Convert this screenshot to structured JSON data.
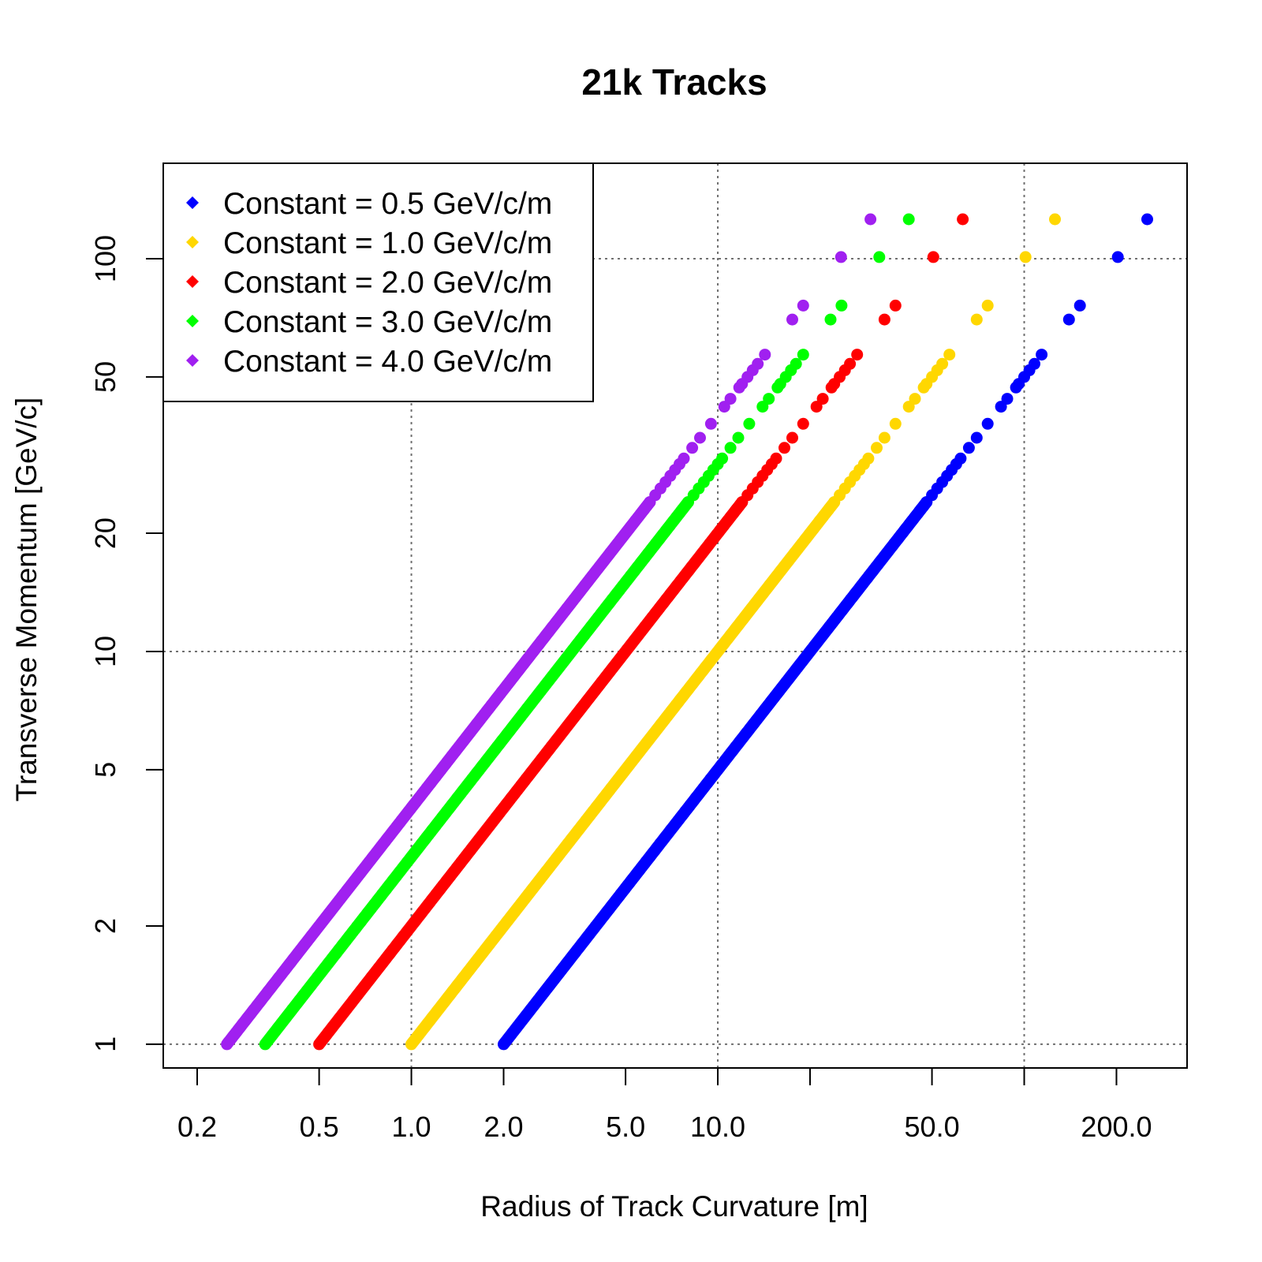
{
  "chart_data": {
    "type": "scatter",
    "title": "21k Tracks",
    "xlabel": "Radius of Track Curvature [m]",
    "ylabel": "Transverse Momentum [GeV/c]",
    "x_scale": "log",
    "y_scale": "log",
    "xlim": [
      0.155,
      340
    ],
    "ylim": [
      0.87,
      175
    ],
    "x_ticks": [
      0.2,
      0.5,
      1.0,
      2.0,
      5.0,
      10.0,
      20.0,
      50.0,
      100.0,
      200.0
    ],
    "x_tick_labels": [
      "0.2",
      "0.5",
      "1.0",
      "2.0",
      "5.0",
      "10.0",
      "",
      "50.0",
      "",
      "200.0"
    ],
    "y_ticks": [
      1,
      2,
      5,
      10,
      20,
      50,
      100
    ],
    "y_tick_labels": [
      "1",
      "2",
      "5",
      "10",
      "20",
      "50",
      "100"
    ],
    "grid": {
      "x": [
        1,
        10,
        100
      ],
      "y": [
        1,
        10,
        100
      ]
    },
    "legend_position": "top-left",
    "relation": "transverse momentum = constant × radius",
    "pt_min": 1,
    "pt_max": 126,
    "series": [
      {
        "name": "Constant = 0.5 GeV/c/m",
        "constant": 0.5,
        "color": "#0000ff",
        "sparse_pt": [
          126,
          101,
          76,
          70,
          57,
          54,
          52,
          50,
          48,
          47,
          44,
          42,
          38,
          35,
          33,
          31,
          30,
          29,
          28,
          27,
          26,
          25,
          24,
          23
        ]
      },
      {
        "name": "Constant = 1.0 GeV/c/m",
        "constant": 1.0,
        "color": "#ffd700",
        "sparse_pt": [
          126,
          101,
          76,
          70,
          57,
          54,
          52,
          50,
          48,
          47,
          44,
          42,
          38,
          35,
          33,
          31,
          30,
          29,
          28,
          27,
          26,
          25,
          24,
          23
        ]
      },
      {
        "name": "Constant = 2.0 GeV/c/m",
        "constant": 2.0,
        "color": "#ff0000",
        "sparse_pt": [
          126,
          101,
          76,
          70,
          57,
          54,
          52,
          50,
          48,
          47,
          44,
          42,
          38,
          35,
          33,
          31,
          30,
          29,
          28,
          27,
          26,
          25,
          24,
          23
        ]
      },
      {
        "name": "Constant = 3.0 GeV/c/m",
        "constant": 3.0,
        "color": "#00ff00",
        "sparse_pt": [
          126,
          101,
          76,
          70,
          57,
          54,
          52,
          50,
          48,
          47,
          44,
          42,
          38,
          35,
          33,
          31,
          30,
          29,
          28,
          27,
          26,
          25,
          24,
          23
        ]
      },
      {
        "name": "Constant = 4.0 GeV/c/m",
        "constant": 4.0,
        "color": "#a020f0",
        "sparse_pt": [
          126,
          101,
          76,
          70,
          57,
          54,
          52,
          50,
          48,
          47,
          44,
          42,
          38,
          35,
          33,
          31,
          30,
          29,
          28,
          27,
          26,
          25,
          24,
          23
        ]
      }
    ]
  }
}
